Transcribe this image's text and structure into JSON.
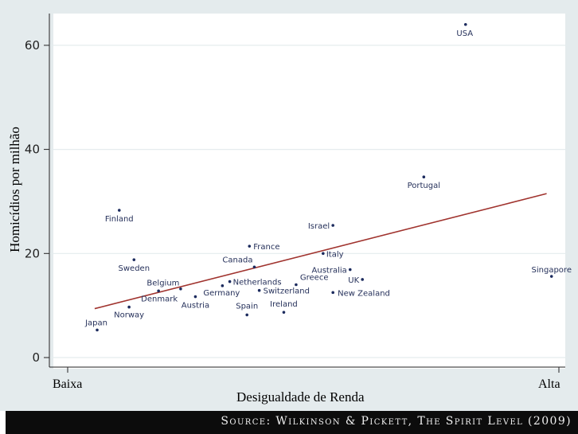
{
  "chart_data": {
    "type": "scatter",
    "title": "",
    "ylabel": "Homicídios por milhão",
    "xlabel": "Desigualdade de Renda",
    "x_axis_end_labels": {
      "low": "Baixa",
      "high": "Alta"
    },
    "ylim": [
      -2,
      67
    ],
    "xlim": [
      0,
      100
    ],
    "yticks": [
      "0",
      "20",
      "40",
      "60"
    ],
    "grid": "horizontal",
    "points": [
      {
        "label": "Japan",
        "x": 6,
        "y": 5.3
      },
      {
        "label": "Norway",
        "x": 12.5,
        "y": 9.7
      },
      {
        "label": "Finland",
        "x": 10.5,
        "y": 28.3
      },
      {
        "label": "Sweden",
        "x": 13.5,
        "y": 18.8
      },
      {
        "label": "Denmark",
        "x": 18.5,
        "y": 12.8
      },
      {
        "label": "Belgium",
        "x": 23,
        "y": 13.2
      },
      {
        "label": "Austria",
        "x": 26,
        "y": 11.7
      },
      {
        "label": "Germany",
        "x": 31.5,
        "y": 13.8
      },
      {
        "label": "Netherlands",
        "x": 33,
        "y": 14.6
      },
      {
        "label": "Spain",
        "x": 36.5,
        "y": 8.2
      },
      {
        "label": "France",
        "x": 37,
        "y": 21.4
      },
      {
        "label": "Canada",
        "x": 38,
        "y": 17.4
      },
      {
        "label": "Switzerland",
        "x": 39,
        "y": 12.9
      },
      {
        "label": "Ireland",
        "x": 44,
        "y": 8.7
      },
      {
        "label": "Greece",
        "x": 46.5,
        "y": 14
      },
      {
        "label": "Italy",
        "x": 52,
        "y": 20
      },
      {
        "label": "Israel",
        "x": 54,
        "y": 25.4
      },
      {
        "label": "New Zealand",
        "x": 54,
        "y": 12.5
      },
      {
        "label": "Australia",
        "x": 57.5,
        "y": 16.9
      },
      {
        "label": "UK",
        "x": 60,
        "y": 15
      },
      {
        "label": "Portugal",
        "x": 72.5,
        "y": 34.7
      },
      {
        "label": "USA",
        "x": 81,
        "y": 64
      },
      {
        "label": "Singapore",
        "x": 98.5,
        "y": 15.6
      }
    ],
    "trendline": {
      "x": [
        5.5,
        97.5
      ],
      "y": [
        9.4,
        31.5
      ]
    },
    "source": "Source: Wilkinson & Pickett, The Spirit Level (2009)"
  }
}
